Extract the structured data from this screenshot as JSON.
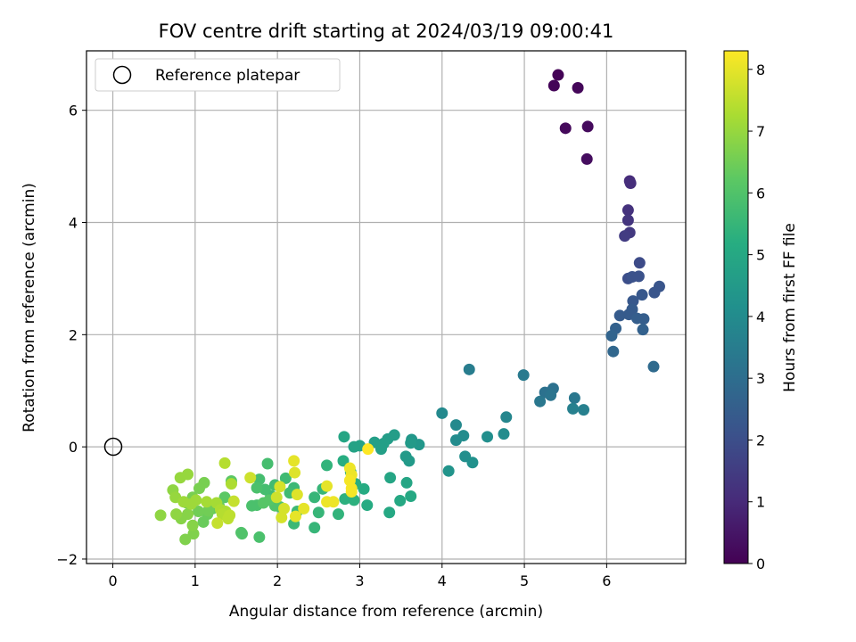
{
  "chart_data": {
    "type": "scatter",
    "title": "FOV centre drift starting at 2024/03/19 09:00:41",
    "xlabel": "Angular distance from reference (arcmin)",
    "ylabel": "Rotation from reference (arcmin)",
    "xlim": [
      -0.32,
      6.96
    ],
    "ylim": [
      -2.08,
      7.06
    ],
    "x_ticks": [
      0,
      1,
      2,
      3,
      4,
      5,
      6
    ],
    "y_ticks": [
      -2,
      0,
      2,
      4,
      6
    ],
    "grid": true,
    "legend": {
      "position": "top-left",
      "entries": [
        "Reference platepar"
      ]
    },
    "reference_point": {
      "x": 0,
      "y": 0,
      "marker": "hollow circle"
    },
    "colorbar": {
      "label": "Hours from first FF file",
      "colormap": "viridis",
      "range": [
        0,
        8.3
      ],
      "ticks": [
        0,
        1,
        2,
        3,
        4,
        5,
        6,
        7,
        8
      ]
    },
    "series": [
      {
        "columns": [
          "x",
          "y",
          "hours"
        ],
        "points": [
          [
            5.41,
            6.63,
            0.05
          ],
          [
            5.36,
            6.44,
            0.1
          ],
          [
            5.65,
            6.4,
            0.15
          ],
          [
            5.5,
            5.68,
            0.2
          ],
          [
            5.77,
            5.71,
            0.25
          ],
          [
            5.76,
            5.13,
            0.3
          ],
          [
            6.28,
            4.74,
            1.05
          ],
          [
            6.29,
            4.7,
            1.1
          ],
          [
            6.26,
            4.22,
            1.2
          ],
          [
            6.26,
            4.04,
            1.3
          ],
          [
            6.28,
            3.82,
            1.4
          ],
          [
            6.22,
            3.76,
            1.5
          ],
          [
            6.4,
            3.28,
            1.9
          ],
          [
            6.26,
            3.0,
            2.0
          ],
          [
            6.31,
            3.03,
            2.1
          ],
          [
            6.39,
            3.04,
            2.1
          ],
          [
            6.64,
            2.86,
            2.2
          ],
          [
            6.58,
            2.75,
            2.2
          ],
          [
            6.43,
            2.71,
            2.3
          ],
          [
            6.32,
            2.6,
            2.3
          ],
          [
            6.31,
            2.45,
            2.4
          ],
          [
            6.27,
            2.36,
            2.4
          ],
          [
            6.16,
            2.34,
            2.4
          ],
          [
            6.37,
            2.29,
            2.5
          ],
          [
            6.45,
            2.28,
            2.5
          ],
          [
            6.44,
            2.09,
            2.6
          ],
          [
            6.11,
            2.11,
            2.6
          ],
          [
            6.06,
            1.98,
            2.7
          ],
          [
            6.08,
            1.7,
            2.8
          ],
          [
            6.57,
            1.43,
            2.9
          ],
          [
            5.35,
            1.04,
            3.1
          ],
          [
            5.25,
            0.97,
            3.1
          ],
          [
            5.32,
            0.92,
            3.2
          ],
          [
            5.61,
            0.87,
            3.3
          ],
          [
            5.19,
            0.81,
            3.3
          ],
          [
            4.99,
            1.28,
            3.4
          ],
          [
            4.33,
            1.38,
            3.5
          ],
          [
            5.59,
            0.68,
            3.6
          ],
          [
            5.72,
            0.66,
            3.6
          ],
          [
            4.78,
            0.53,
            3.8
          ],
          [
            4.0,
            0.6,
            3.9
          ],
          [
            4.17,
            0.39,
            3.9
          ],
          [
            4.26,
            0.2,
            4.0
          ],
          [
            4.17,
            0.12,
            4.0
          ],
          [
            4.75,
            0.23,
            4.0
          ],
          [
            4.55,
            0.18,
            4.1
          ],
          [
            4.28,
            -0.17,
            4.1
          ],
          [
            4.37,
            -0.28,
            4.2
          ],
          [
            4.08,
            -0.43,
            4.3
          ],
          [
            3.72,
            0.04,
            4.4
          ],
          [
            3.63,
            0.13,
            4.4
          ],
          [
            3.62,
            0.07,
            4.5
          ],
          [
            3.56,
            -0.17,
            4.5
          ],
          [
            3.6,
            -0.25,
            4.5
          ],
          [
            3.42,
            0.21,
            4.6
          ],
          [
            3.34,
            0.14,
            4.6
          ],
          [
            3.29,
            0.06,
            4.7
          ],
          [
            3.26,
            -0.04,
            4.7
          ],
          [
            3.18,
            0.08,
            4.7
          ],
          [
            3.0,
            0.02,
            4.8
          ],
          [
            2.93,
            0.0,
            4.8
          ],
          [
            2.81,
            0.18,
            4.9
          ],
          [
            3.37,
            -0.55,
            4.9
          ],
          [
            3.57,
            -0.64,
            4.9
          ],
          [
            3.62,
            -0.88,
            5.0
          ],
          [
            3.49,
            -0.96,
            5.0
          ],
          [
            3.36,
            -1.17,
            5.0
          ],
          [
            3.09,
            -1.04,
            5.1
          ],
          [
            3.05,
            -0.75,
            5.1
          ],
          [
            2.95,
            -0.66,
            5.2
          ],
          [
            2.8,
            -0.25,
            5.2
          ],
          [
            2.89,
            -0.45,
            5.3
          ],
          [
            2.82,
            -0.93,
            5.3
          ],
          [
            2.93,
            -0.95,
            5.3
          ],
          [
            2.74,
            -1.2,
            5.4
          ],
          [
            2.6,
            -0.33,
            5.4
          ],
          [
            2.55,
            -0.75,
            5.5
          ],
          [
            2.45,
            -0.9,
            5.5
          ],
          [
            2.5,
            -1.17,
            5.5
          ],
          [
            2.45,
            -1.44,
            5.5
          ],
          [
            2.24,
            -1.15,
            5.6
          ],
          [
            2.2,
            -1.37,
            5.6
          ],
          [
            2.2,
            -0.73,
            5.6
          ],
          [
            2.1,
            -0.56,
            5.7
          ],
          [
            2.15,
            -0.82,
            5.7
          ],
          [
            1.97,
            -0.68,
            5.7
          ],
          [
            1.92,
            -0.87,
            5.7
          ],
          [
            1.85,
            -0.76,
            5.8
          ],
          [
            1.88,
            -0.3,
            5.8
          ],
          [
            1.78,
            -0.58,
            5.8
          ],
          [
            1.75,
            -0.73,
            5.9
          ],
          [
            1.69,
            -1.05,
            5.9
          ],
          [
            1.75,
            -1.04,
            5.9
          ],
          [
            1.78,
            -1.61,
            5.9
          ],
          [
            1.57,
            -1.55,
            6.0
          ],
          [
            1.56,
            -1.53,
            6.0
          ],
          [
            2.03,
            -1.07,
            6.0
          ],
          [
            1.97,
            -1.05,
            6.0
          ],
          [
            1.9,
            -0.95,
            6.1
          ],
          [
            1.83,
            -1.0,
            6.1
          ],
          [
            1.44,
            -0.61,
            6.2
          ],
          [
            1.36,
            -0.9,
            6.2
          ],
          [
            1.29,
            -1.05,
            6.3
          ],
          [
            1.21,
            -1.1,
            6.3
          ],
          [
            1.15,
            -1.2,
            6.4
          ],
          [
            1.1,
            -1.34,
            6.4
          ],
          [
            1.16,
            -1.14,
            6.5
          ],
          [
            1.04,
            -1.15,
            6.5
          ],
          [
            1.11,
            -0.64,
            6.6
          ],
          [
            1.05,
            -0.74,
            6.6
          ],
          [
            0.97,
            -0.9,
            6.6
          ],
          [
            0.9,
            -1.0,
            6.6
          ],
          [
            0.88,
            -1.65,
            6.7
          ],
          [
            0.98,
            -1.55,
            6.7
          ],
          [
            0.97,
            -1.4,
            6.8
          ],
          [
            0.91,
            -1.2,
            6.8
          ],
          [
            0.83,
            -1.28,
            6.8
          ],
          [
            0.77,
            -1.2,
            6.9
          ],
          [
            0.58,
            -1.22,
            6.9
          ],
          [
            0.73,
            -0.77,
            6.9
          ],
          [
            0.76,
            -0.9,
            7.0
          ],
          [
            0.82,
            -0.55,
            7.0
          ],
          [
            0.91,
            -0.49,
            7.0
          ],
          [
            0.86,
            -0.98,
            7.1
          ],
          [
            0.95,
            -1.02,
            7.1
          ],
          [
            1.01,
            -0.95,
            7.1
          ],
          [
            1.14,
            -0.98,
            7.2
          ],
          [
            1.26,
            -1.0,
            7.2
          ],
          [
            1.31,
            -1.12,
            7.3
          ],
          [
            1.37,
            -1.15,
            7.3
          ],
          [
            1.44,
            -0.66,
            7.3
          ],
          [
            1.36,
            -0.29,
            7.4
          ],
          [
            1.33,
            -1.2,
            7.4
          ],
          [
            1.4,
            -1.28,
            7.5
          ],
          [
            1.42,
            -1.22,
            7.5
          ],
          [
            1.27,
            -1.36,
            7.6
          ],
          [
            1.47,
            -0.97,
            7.6
          ],
          [
            1.67,
            -0.55,
            7.7
          ],
          [
            1.99,
            -0.9,
            7.7
          ],
          [
            2.03,
            -0.71,
            7.8
          ],
          [
            2.08,
            -1.1,
            7.8
          ],
          [
            2.05,
            -1.26,
            7.8
          ],
          [
            2.24,
            -0.85,
            7.9
          ],
          [
            2.21,
            -0.46,
            7.9
          ],
          [
            2.2,
            -0.25,
            8.0
          ],
          [
            2.32,
            -1.1,
            8.0
          ],
          [
            2.22,
            -1.24,
            8.0
          ],
          [
            2.6,
            -0.7,
            8.0
          ],
          [
            2.6,
            -0.98,
            8.1
          ],
          [
            2.68,
            -0.98,
            8.1
          ],
          [
            2.88,
            -0.38,
            8.1
          ],
          [
            2.9,
            -0.5,
            8.1
          ],
          [
            2.88,
            -0.6,
            8.2
          ],
          [
            2.9,
            -0.74,
            8.2
          ],
          [
            2.9,
            -0.8,
            8.2
          ],
          [
            3.1,
            -0.04,
            8.3
          ]
        ]
      }
    ]
  }
}
